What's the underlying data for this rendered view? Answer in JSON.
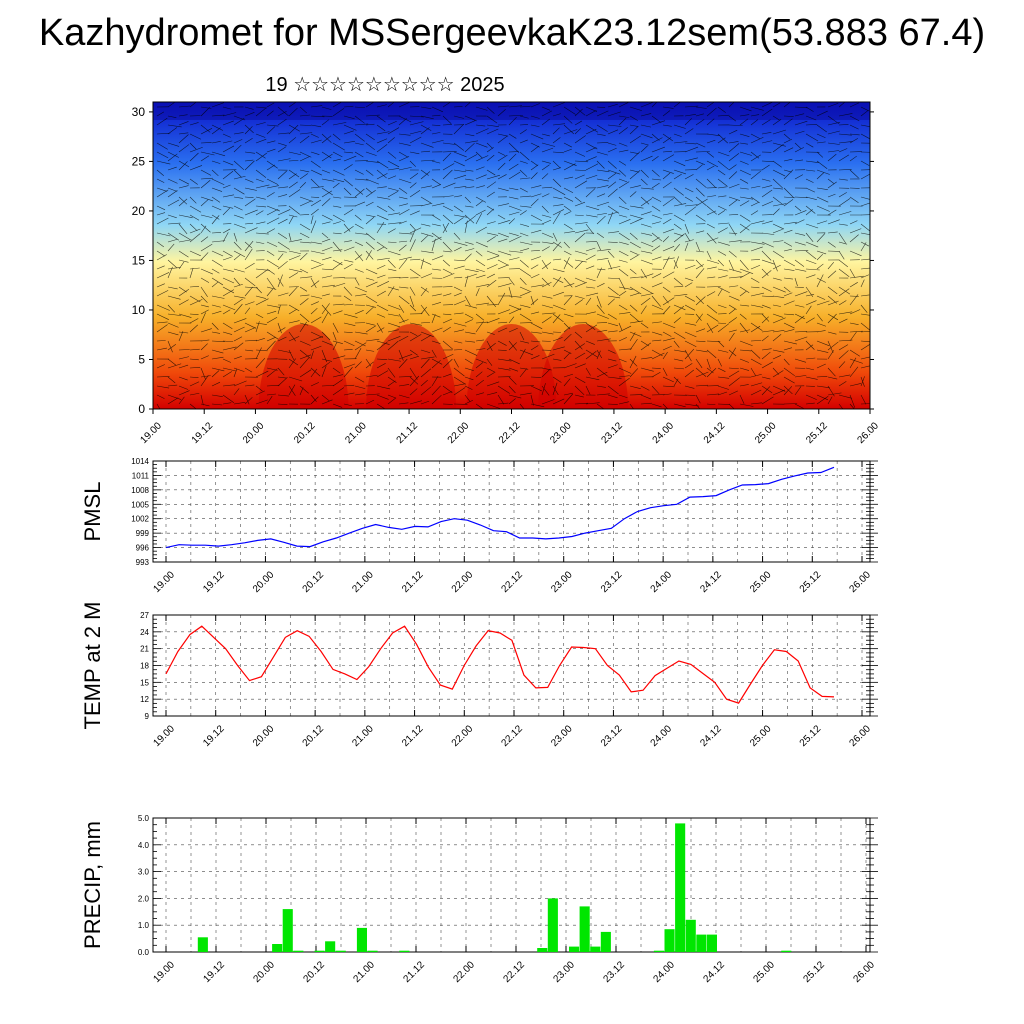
{
  "title": "Kazhydromet for MSSergeevkaK23.12sem(53.883 67.4)",
  "subtitle": "19 ☆☆☆☆☆☆☆☆☆ 2025",
  "time_labels": [
    "19.00",
    "19.12",
    "20.00",
    "20.12",
    "21.00",
    "21.12",
    "22.00",
    "22.12",
    "23.00",
    "23.12",
    "24.00",
    "24.12",
    "25.00",
    "25.12",
    "26.00"
  ],
  "chart_data": [
    {
      "type": "heatmap",
      "title": "",
      "xlabel": "",
      "ylabel": "",
      "x_ticks": [
        "19.00",
        "19.12",
        "20.00",
        "20.12",
        "21.00",
        "21.12",
        "22.00",
        "22.12",
        "23.00",
        "23.12",
        "24.00",
        "24.12",
        "25.00",
        "25.12",
        "26.00"
      ],
      "y_ticks": [
        0,
        5,
        10,
        15,
        20,
        25,
        30
      ],
      "ylim": [
        0,
        31
      ],
      "colormap": [
        "#0a14c8",
        "#2a6ff0",
        "#8fd6f5",
        "#fff5a0",
        "#f7b02a",
        "#f04a0a",
        "#d40000"
      ],
      "overlay": "wind vectors"
    },
    {
      "type": "line",
      "ylabel": "PMSL",
      "ylim": [
        993,
        1014
      ],
      "y_ticks": [
        993,
        996,
        999,
        1002,
        1005,
        1008,
        1011,
        1014
      ],
      "x_ticks": [
        "19.00",
        "19.12",
        "20.00",
        "20.12",
        "21.00",
        "21.12",
        "22.00",
        "22.12",
        "23.00",
        "23.12",
        "24.00",
        "24.12",
        "25.00",
        "25.12",
        "26.00"
      ],
      "color": "#0000ff",
      "series": [
        {
          "values": [
            996.0,
            996.6,
            996.5,
            996.5,
            996.3,
            996.6,
            997.0,
            997.5,
            997.8,
            997.1,
            996.3,
            996.2,
            997.2,
            998.0,
            999.0,
            1000.0,
            1000.8,
            1000.2,
            999.8,
            1000.4,
            1000.3,
            1001.4,
            1002.0,
            1001.7,
            1000.7,
            999.5,
            999.3,
            998.0,
            998.0,
            997.8,
            998.0,
            998.3,
            999.0,
            999.5,
            1000.0,
            1002.0,
            1003.5,
            1004.3,
            1004.7,
            1005.0,
            1006.5,
            1006.6,
            1006.8,
            1008.0,
            1009.0,
            1009.1,
            1009.3,
            1010.2,
            1010.9,
            1011.5,
            1011.6,
            1012.7
          ]
        }
      ]
    },
    {
      "type": "line",
      "ylabel": "TEMP at 2 M",
      "ylim": [
        9,
        27
      ],
      "y_ticks": [
        9,
        12,
        15,
        18,
        21,
        24,
        27
      ],
      "x_ticks": [
        "19.00",
        "19.12",
        "20.00",
        "20.12",
        "21.00",
        "21.12",
        "22.00",
        "22.12",
        "23.00",
        "23.12",
        "24.00",
        "24.12",
        "25.00",
        "25.12",
        "26.00"
      ],
      "color": "#ff0000",
      "series": [
        {
          "values": [
            16.5,
            20.5,
            23.5,
            25.0,
            23.0,
            21.0,
            18.0,
            15.3,
            16.0,
            19.5,
            23.0,
            24.2,
            23.2,
            20.5,
            17.3,
            16.5,
            15.5,
            17.8,
            21.0,
            23.8,
            25.0,
            21.8,
            17.7,
            14.5,
            13.8,
            18.0,
            21.5,
            24.2,
            23.8,
            22.5,
            16.3,
            14.0,
            14.1,
            18.0,
            21.3,
            21.2,
            21.0,
            18.0,
            16.3,
            13.3,
            13.6,
            16.2,
            17.5,
            18.8,
            18.2,
            16.6,
            15.0,
            12.0,
            11.3,
            14.7,
            18.0,
            20.8,
            20.5,
            18.8,
            14.0,
            12.5,
            12.4
          ]
        }
      ]
    },
    {
      "type": "bar",
      "ylabel": "PRECIP, mm",
      "ylim": [
        0,
        5.0
      ],
      "y_ticks": [
        "0.0",
        "1.0",
        "2.0",
        "3.0",
        "4.0",
        "5.0"
      ],
      "x_ticks": [
        "19.00",
        "19.12",
        "20.00",
        "20.12",
        "21.00",
        "21.12",
        "22.00",
        "22.12",
        "23.00",
        "23.12",
        "24.00",
        "24.12",
        "25.00",
        "25.12",
        "26.00"
      ],
      "color": "#00e600",
      "values": [
        0,
        0,
        0,
        0.55,
        0,
        0,
        0,
        0,
        0,
        0,
        0.3,
        1.6,
        0.05,
        0,
        0.05,
        0.4,
        0.05,
        0,
        0.9,
        0.05,
        0,
        0,
        0.05,
        0,
        0,
        0,
        0,
        0,
        0,
        0,
        0,
        0,
        0,
        0,
        0,
        0.15,
        2.0,
        0,
        0.2,
        1.7,
        0.2,
        0.75,
        0,
        0,
        0,
        0,
        0.05,
        0.85,
        4.8,
        1.2,
        0.65,
        0.65,
        0,
        0,
        0,
        0,
        0,
        0,
        0.05,
        0,
        0,
        0,
        0,
        0,
        0,
        0
      ]
    }
  ]
}
